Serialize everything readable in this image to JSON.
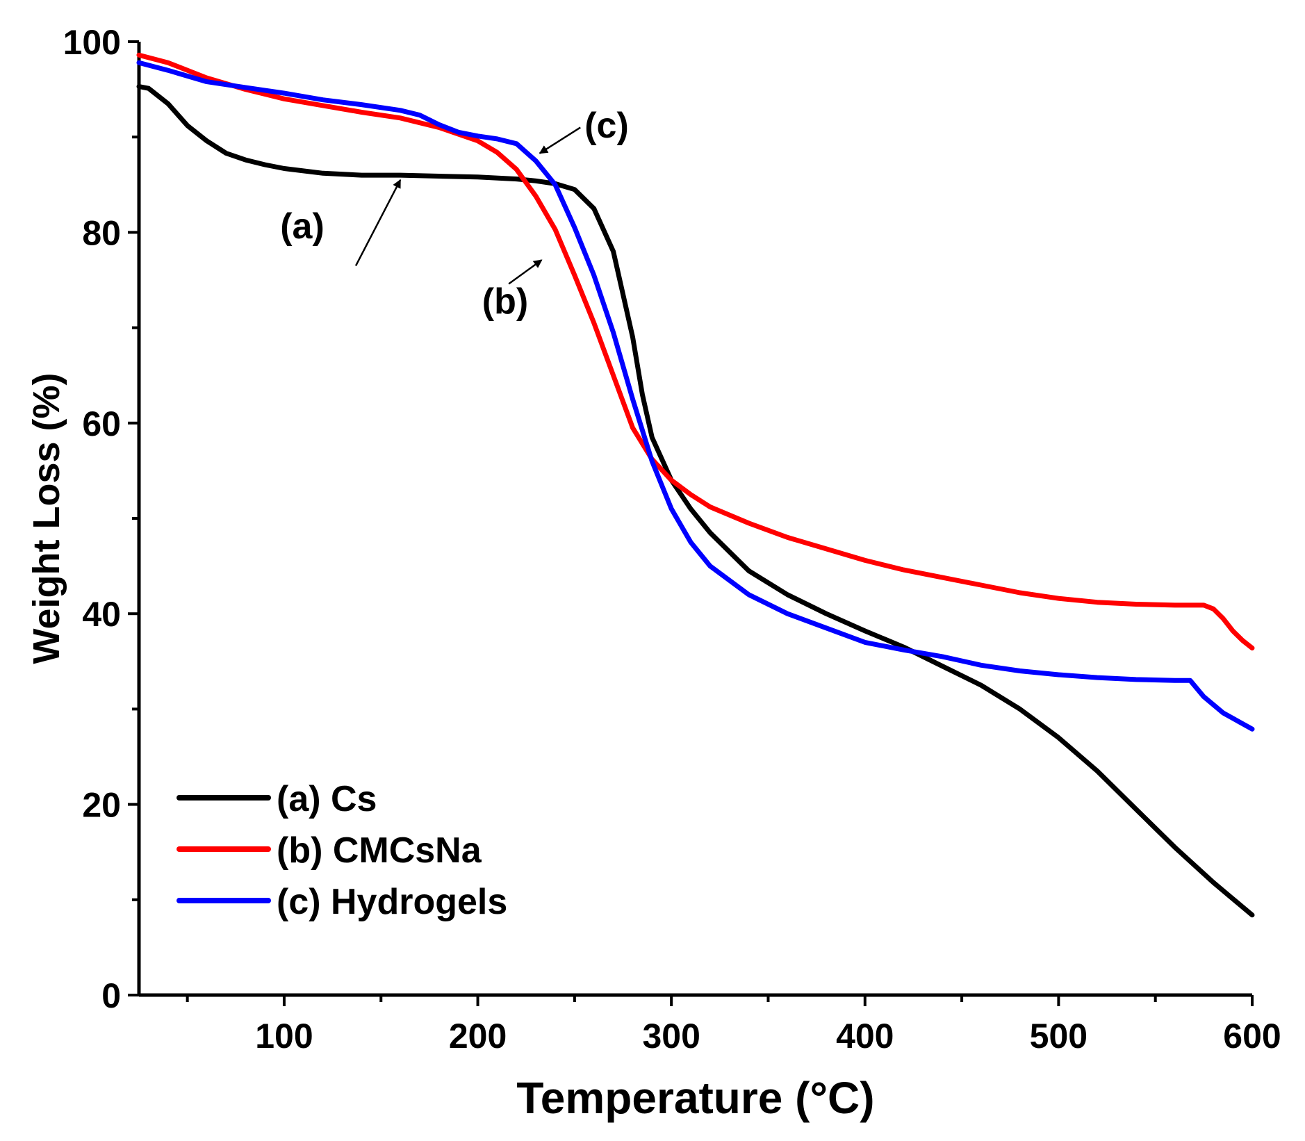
{
  "chart_data": {
    "type": "line",
    "title": "",
    "xlabel": "Temperature (°C)",
    "ylabel": "Weight Loss (%)",
    "xlim": [
      25,
      600
    ],
    "ylim": [
      0,
      100
    ],
    "x_ticks": [
      100,
      200,
      300,
      400,
      500,
      600
    ],
    "x_tick_labels": [
      "100",
      "200",
      "300",
      "400",
      "500",
      "600"
    ],
    "x_minor_ticks": [
      50,
      150,
      250,
      350,
      450,
      550
    ],
    "y_ticks": [
      0,
      20,
      40,
      60,
      80,
      100
    ],
    "y_tick_labels": [
      "0",
      "20",
      "40",
      "60",
      "80",
      "100"
    ],
    "y_minor_ticks": [
      10,
      30,
      50,
      70,
      90
    ],
    "grid": false,
    "legend_position": "bottom-left",
    "series": [
      {
        "name": "(a) Cs",
        "color": "#000000",
        "x": [
          25,
          30,
          40,
          50,
          60,
          70,
          80,
          90,
          100,
          120,
          140,
          160,
          180,
          200,
          220,
          230,
          240,
          250,
          260,
          270,
          280,
          285,
          290,
          300,
          310,
          320,
          340,
          360,
          380,
          400,
          420,
          440,
          460,
          480,
          500,
          520,
          540,
          560,
          580,
          600
        ],
        "y": [
          95.3,
          95.1,
          93.5,
          91.2,
          89.6,
          88.3,
          87.6,
          87.1,
          86.7,
          86.2,
          86.0,
          86.0,
          85.9,
          85.8,
          85.6,
          85.4,
          85.1,
          84.5,
          82.5,
          78.0,
          69.0,
          63.0,
          58.5,
          54.0,
          51.0,
          48.5,
          44.5,
          42.0,
          40.0,
          38.2,
          36.5,
          34.5,
          32.5,
          30.0,
          27.0,
          23.5,
          19.5,
          15.5,
          11.8,
          8.4
        ]
      },
      {
        "name": "(b) CMCsNa",
        "color": "#ff0000",
        "x": [
          25,
          40,
          60,
          80,
          100,
          120,
          140,
          160,
          180,
          200,
          210,
          220,
          230,
          240,
          250,
          260,
          270,
          280,
          290,
          300,
          310,
          320,
          340,
          360,
          380,
          400,
          420,
          440,
          460,
          480,
          500,
          520,
          540,
          560,
          575,
          580,
          585,
          590,
          595,
          600
        ],
        "y": [
          98.6,
          97.8,
          96.2,
          95.0,
          94.0,
          93.3,
          92.6,
          92.0,
          91.0,
          89.6,
          88.4,
          86.6,
          83.8,
          80.3,
          75.5,
          70.5,
          65.0,
          59.5,
          56.2,
          54.0,
          52.5,
          51.2,
          49.5,
          48.0,
          46.8,
          45.6,
          44.6,
          43.8,
          43.0,
          42.2,
          41.6,
          41.2,
          41.0,
          40.9,
          40.9,
          40.5,
          39.5,
          38.2,
          37.2,
          36.4
        ]
      },
      {
        "name": "(c) Hydrogels",
        "color": "#0000ff",
        "x": [
          25,
          40,
          60,
          80,
          100,
          120,
          140,
          160,
          170,
          180,
          190,
          200,
          210,
          220,
          230,
          240,
          250,
          260,
          270,
          280,
          290,
          300,
          310,
          320,
          340,
          360,
          380,
          400,
          420,
          440,
          460,
          480,
          500,
          520,
          540,
          560,
          568,
          575,
          585,
          600
        ],
        "y": [
          97.8,
          97.0,
          95.8,
          95.2,
          94.6,
          93.9,
          93.4,
          92.8,
          92.3,
          91.3,
          90.5,
          90.1,
          89.8,
          89.3,
          87.5,
          85.0,
          80.5,
          75.5,
          69.5,
          62.5,
          56.0,
          51.0,
          47.5,
          45.0,
          42.0,
          40.0,
          38.5,
          37.0,
          36.2,
          35.5,
          34.6,
          34.0,
          33.6,
          33.3,
          33.1,
          33.0,
          33.0,
          31.3,
          29.6,
          27.9
        ]
      }
    ],
    "annotations": [
      {
        "label": "(a)",
        "arrow_from": [
          137,
          76.5
        ],
        "arrow_to": [
          160,
          85.5
        ]
      },
      {
        "label": "(b)",
        "arrow_from": [
          216,
          74.6
        ],
        "arrow_to": [
          233,
          77.1
        ]
      },
      {
        "label": "(c)",
        "arrow_from": [
          253,
          91.0
        ],
        "arrow_to": [
          232,
          88.3
        ]
      }
    ]
  }
}
